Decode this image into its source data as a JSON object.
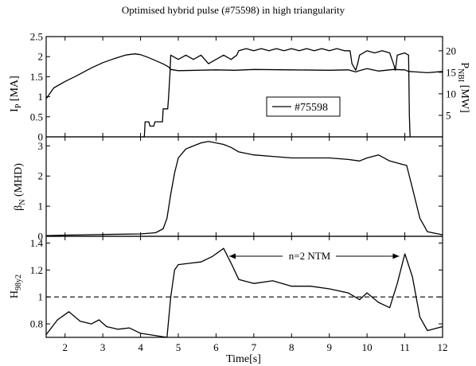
{
  "title": "Optimised hybrid pulse (#75598) in high triangularity",
  "xlabel": "Time[s]",
  "x_ticks": [
    2,
    3,
    4,
    5,
    6,
    7,
    8,
    9,
    10,
    11,
    12
  ],
  "chart_data": [
    {
      "type": "line",
      "panel": "top",
      "ylabel": "I_P [MA]",
      "ylabel_right": "P_NBI [MW]",
      "xlim": [
        1.5,
        12
      ],
      "ylim": [
        0,
        2.5
      ],
      "ylim_right": [
        0,
        23.3
      ],
      "yticks": [
        "0",
        "0.5",
        "1",
        "1.5",
        "2",
        "2.5"
      ],
      "yticks_right": [
        "5",
        "10",
        "15",
        "20"
      ],
      "legend": "#75598",
      "series": [
        {
          "axis": "left",
          "x": [
            1.5,
            1.7,
            2.0,
            2.3,
            2.7,
            3.0,
            3.3,
            3.6,
            3.85,
            4.0,
            4.2,
            4.4,
            4.6,
            4.75,
            4.8,
            5.0,
            5.5,
            6.0,
            6.5,
            7.0,
            8.0,
            9.0,
            9.5,
            9.7,
            9.8,
            10.0,
            10.3,
            10.7,
            11.0,
            11.1,
            11.3,
            11.6,
            12.0
          ],
          "y": [
            0.95,
            1.22,
            1.38,
            1.52,
            1.72,
            1.85,
            1.95,
            2.04,
            2.07,
            2.05,
            1.98,
            1.9,
            1.82,
            1.74,
            1.68,
            1.65,
            1.66,
            1.67,
            1.66,
            1.68,
            1.67,
            1.66,
            1.67,
            1.62,
            1.65,
            1.7,
            1.64,
            1.68,
            1.67,
            1.63,
            1.62,
            1.6,
            1.63
          ]
        },
        {
          "axis": "right",
          "x": [
            4.05,
            4.1,
            4.12,
            4.22,
            4.25,
            4.35,
            4.38,
            4.58,
            4.6,
            4.72,
            4.74,
            4.78,
            4.8,
            5.0,
            5.2,
            5.4,
            5.6,
            5.8,
            6.0,
            6.2,
            6.4,
            6.55,
            6.6,
            6.8,
            7.0,
            7.2,
            7.4,
            7.6,
            7.8,
            8.0,
            8.2,
            8.4,
            8.6,
            8.8,
            9.0,
            9.2,
            9.4,
            9.55,
            9.6,
            9.7,
            9.75,
            9.8,
            10.0,
            10.2,
            10.4,
            10.6,
            10.7,
            10.75,
            10.8,
            11.0,
            11.1,
            11.12,
            11.14
          ],
          "y": [
            0,
            0,
            3.5,
            3.5,
            2.5,
            2.5,
            3.5,
            3.5,
            6.5,
            6.5,
            9,
            15,
            19,
            18,
            19,
            18,
            19,
            17,
            18,
            19,
            18,
            19,
            20,
            20.5,
            20,
            20.5,
            20,
            20.5,
            20,
            20.5,
            20,
            20.5,
            20,
            20.5,
            20,
            20.5,
            20,
            20,
            17,
            15.5,
            17,
            19,
            20,
            19.5,
            20,
            19.5,
            17,
            15.5,
            19,
            19.5,
            19,
            5,
            0
          ]
        }
      ]
    },
    {
      "type": "line",
      "panel": "middle",
      "ylabel": "β_N (MHD)",
      "xlim": [
        1.5,
        12
      ],
      "ylim": [
        0,
        3.3
      ],
      "yticks": [
        "0",
        "1",
        "2",
        "3"
      ],
      "series": [
        {
          "x": [
            1.5,
            2.0,
            3.0,
            4.0,
            4.4,
            4.6,
            4.7,
            4.8,
            4.9,
            5.0,
            5.2,
            5.4,
            5.6,
            5.8,
            6.0,
            6.2,
            6.4,
            6.6,
            7.0,
            7.5,
            8.0,
            8.5,
            9.0,
            9.5,
            9.8,
            10.0,
            10.3,
            10.6,
            10.9,
            11.05,
            11.2,
            11.4,
            11.6,
            12.0
          ],
          "y": [
            0.02,
            0.04,
            0.06,
            0.08,
            0.12,
            0.25,
            0.6,
            1.4,
            2.1,
            2.6,
            2.9,
            3.0,
            3.1,
            3.15,
            3.1,
            3.05,
            2.95,
            2.8,
            2.7,
            2.65,
            2.6,
            2.6,
            2.6,
            2.55,
            2.5,
            2.6,
            2.7,
            2.5,
            2.4,
            2.35,
            1.6,
            0.6,
            0.15,
            0.05
          ]
        }
      ]
    },
    {
      "type": "line",
      "panel": "bottom",
      "ylabel": "H_98y2",
      "xlim": [
        1.5,
        12
      ],
      "ylim": [
        0.7,
        1.45
      ],
      "yticks": [
        "0.8",
        "1",
        "1.2",
        "1.4"
      ],
      "reference_line": 1.0,
      "annotation": "n=2 NTM",
      "annotation_span": [
        6.35,
        10.85
      ],
      "series": [
        {
          "x": [
            1.5,
            1.8,
            2.1,
            2.4,
            2.7,
            2.9,
            3.1,
            3.4,
            3.7,
            4.0,
            4.7,
            4.8,
            4.9,
            5.0,
            5.3,
            5.6,
            5.9,
            6.2,
            6.4,
            6.6,
            7.0,
            7.5,
            8.0,
            8.5,
            9.0,
            9.5,
            9.8,
            10.0,
            10.3,
            10.6,
            10.8,
            11.0,
            11.2,
            11.4,
            11.6,
            12.0
          ],
          "y": [
            0.72,
            0.83,
            0.89,
            0.82,
            0.8,
            0.83,
            0.78,
            0.76,
            0.77,
            0.73,
            0.7,
            1.0,
            1.2,
            1.24,
            1.25,
            1.26,
            1.3,
            1.36,
            1.25,
            1.13,
            1.1,
            1.12,
            1.08,
            1.08,
            1.06,
            1.03,
            0.98,
            1.03,
            0.96,
            0.92,
            1.1,
            1.32,
            1.15,
            0.85,
            0.75,
            0.78
          ]
        }
      ]
    }
  ]
}
